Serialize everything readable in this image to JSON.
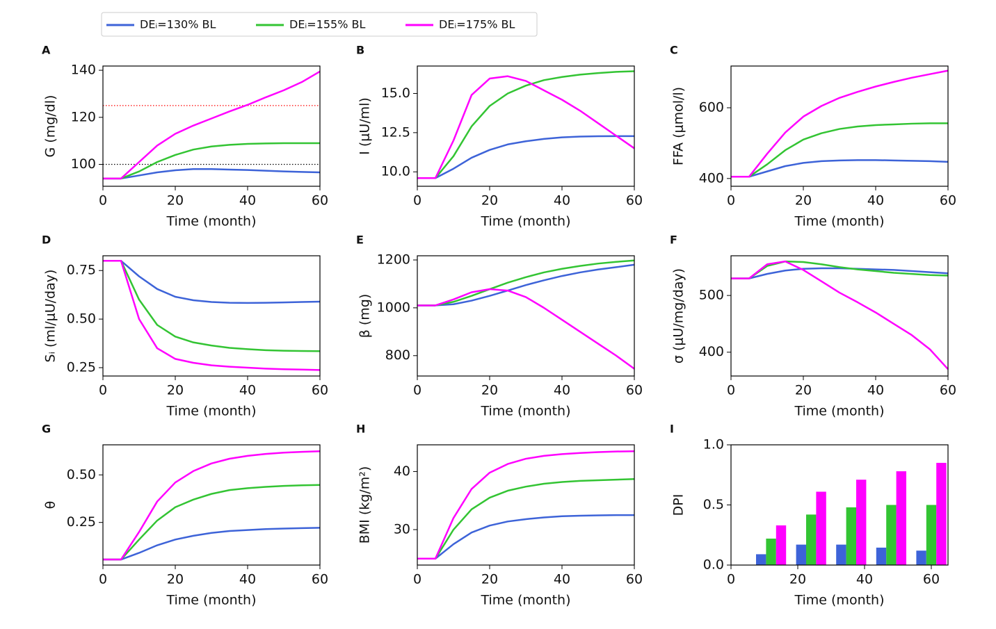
{
  "legend": [
    {
      "name": "DEᵢ=130% BL",
      "color": "#3d63d8"
    },
    {
      "name": "DEᵢ=155% BL",
      "color": "#33c433"
    },
    {
      "name": "DEᵢ=175% BL",
      "color": "#ff00ff"
    }
  ],
  "chart_data": [
    {
      "type": "line",
      "label": "A",
      "ylabel": "G (mg/dl)",
      "xlabel": "Time (month)",
      "x": [
        0,
        5,
        10,
        15,
        20,
        25,
        30,
        35,
        40,
        45,
        50,
        55,
        60
      ],
      "xlim": [
        0,
        60
      ],
      "xticks": [
        0,
        20,
        40,
        60
      ],
      "ylim": [
        90.7,
        141.8
      ],
      "yticks": [
        100,
        120,
        140
      ],
      "hlines": [
        {
          "value": 125,
          "color": "red"
        },
        {
          "value": 100,
          "color": "black"
        }
      ],
      "series": [
        {
          "values": [
            94,
            94,
            95.3,
            96.6,
            97.5,
            98,
            98,
            97.8,
            97.6,
            97.3,
            97,
            96.8,
            96.6
          ]
        },
        {
          "values": [
            94,
            94,
            97,
            101,
            104,
            106.3,
            107.6,
            108.3,
            108.7,
            108.9,
            109,
            109,
            109
          ]
        },
        {
          "values": [
            94,
            94,
            101,
            108,
            113,
            116.5,
            119.5,
            122.5,
            125.3,
            128.5,
            131.5,
            135,
            139.5
          ]
        }
      ]
    },
    {
      "type": "line",
      "label": "B",
      "ylabel": "I (μU/ml)",
      "xlabel": "Time (month)",
      "x": [
        0,
        5,
        10,
        15,
        20,
        25,
        30,
        35,
        40,
        45,
        50,
        55,
        60
      ],
      "xlim": [
        0,
        60
      ],
      "xticks": [
        0,
        20,
        40,
        60
      ],
      "ylim": [
        9.08,
        16.75
      ],
      "yticks": [
        {
          "value": 10,
          "label": "10.0"
        },
        12.5,
        {
          "value": 15,
          "label": "15.0"
        }
      ],
      "series": [
        {
          "values": [
            9.6,
            9.6,
            10.2,
            10.9,
            11.4,
            11.75,
            11.95,
            12.1,
            12.2,
            12.25,
            12.27,
            12.28,
            12.28
          ]
        },
        {
          "values": [
            9.6,
            9.6,
            11.0,
            12.9,
            14.2,
            15.0,
            15.5,
            15.85,
            16.05,
            16.2,
            16.3,
            16.38,
            16.42
          ]
        },
        {
          "values": [
            9.6,
            9.6,
            12.0,
            14.9,
            15.95,
            16.1,
            15.8,
            15.2,
            14.6,
            13.9,
            13.1,
            12.3,
            11.5
          ]
        }
      ]
    },
    {
      "type": "line",
      "label": "C",
      "ylabel": "FFA (μmol/l)",
      "xlabel": "Time (month)",
      "x": [
        0,
        5,
        10,
        15,
        20,
        25,
        30,
        35,
        40,
        45,
        50,
        55,
        60
      ],
      "xlim": [
        0,
        60
      ],
      "xticks": [
        0,
        20,
        40,
        60
      ],
      "ylim": [
        378,
        718
      ],
      "yticks": [
        400,
        600
      ],
      "series": [
        {
          "values": [
            405,
            405,
            420,
            435,
            444,
            449,
            451,
            452,
            452,
            451,
            450,
            449,
            447
          ]
        },
        {
          "values": [
            405,
            405,
            440,
            480,
            510,
            528,
            540,
            547,
            551,
            553,
            555,
            556,
            556
          ]
        },
        {
          "values": [
            405,
            405,
            470,
            530,
            575,
            605,
            628,
            645,
            660,
            673,
            685,
            695,
            705
          ]
        }
      ]
    },
    {
      "type": "line",
      "label": "D",
      "ylabel": "Sᵢ (ml/μU/day)",
      "xlabel": "Time (month)",
      "x": [
        0,
        5,
        10,
        15,
        20,
        25,
        30,
        35,
        40,
        45,
        50,
        55,
        60
      ],
      "xlim": [
        0,
        60
      ],
      "xticks": [
        0,
        20,
        40,
        60
      ],
      "ylim": [
        0.207,
        0.826
      ],
      "yticks": [
        0.25,
        {
          "value": 0.5,
          "label": "0.50"
        },
        0.75
      ],
      "series": [
        {
          "values": [
            0.8,
            0.8,
            0.72,
            0.655,
            0.615,
            0.597,
            0.588,
            0.584,
            0.583,
            0.584,
            0.586,
            0.588,
            0.59
          ]
        },
        {
          "values": [
            0.8,
            0.8,
            0.6,
            0.47,
            0.41,
            0.38,
            0.364,
            0.352,
            0.345,
            0.34,
            0.337,
            0.336,
            0.335
          ]
        },
        {
          "values": [
            0.8,
            0.8,
            0.5,
            0.35,
            0.295,
            0.275,
            0.262,
            0.255,
            0.25,
            0.245,
            0.242,
            0.24,
            0.238
          ]
        }
      ]
    },
    {
      "type": "line",
      "label": "E",
      "ylabel": "β (mg)",
      "xlabel": "Time (month)",
      "x": [
        0,
        5,
        10,
        15,
        20,
        25,
        30,
        35,
        40,
        45,
        50,
        55,
        60
      ],
      "xlim": [
        0,
        60
      ],
      "xticks": [
        0,
        20,
        40,
        60
      ],
      "ylim": [
        715,
        1217.5
      ],
      "yticks": [
        800,
        1000,
        1200
      ],
      "series": [
        {
          "values": [
            1010,
            1010,
            1015,
            1030,
            1050,
            1072,
            1095,
            1115,
            1133,
            1148,
            1160,
            1170,
            1180
          ]
        },
        {
          "values": [
            1010,
            1010,
            1025,
            1050,
            1078,
            1105,
            1128,
            1148,
            1163,
            1175,
            1185,
            1192,
            1198
          ]
        },
        {
          "values": [
            1010,
            1010,
            1035,
            1065,
            1078,
            1072,
            1045,
            1000,
            950,
            900,
            850,
            800,
            745
          ]
        }
      ]
    },
    {
      "type": "line",
      "label": "F",
      "ylabel": "σ (μU/mg/day)",
      "xlabel": "Time (month)",
      "x": [
        0,
        5,
        10,
        15,
        20,
        25,
        30,
        35,
        40,
        45,
        50,
        55,
        60
      ],
      "xlim": [
        0,
        60
      ],
      "xticks": [
        0,
        20,
        40,
        60
      ],
      "ylim": [
        358,
        570
      ],
      "yticks": [
        400,
        500
      ],
      "series": [
        {
          "values": [
            530,
            530,
            538,
            544,
            547,
            548,
            548,
            547,
            546,
            545,
            543,
            541,
            539
          ]
        },
        {
          "values": [
            530,
            530,
            552,
            560,
            559,
            555,
            550,
            546,
            543,
            540,
            538,
            536,
            535
          ]
        },
        {
          "values": [
            530,
            530,
            555,
            560,
            545,
            525,
            505,
            488,
            470,
            450,
            430,
            405,
            370
          ]
        }
      ]
    },
    {
      "type": "line",
      "label": "G",
      "ylabel": "θ",
      "xlabel": "Time (month)",
      "x": [
        0,
        5,
        10,
        15,
        20,
        25,
        30,
        35,
        40,
        45,
        50,
        55,
        60
      ],
      "xlim": [
        0,
        60
      ],
      "xticks": [
        0,
        20,
        40,
        60
      ],
      "ylim": [
        0.026,
        0.658
      ],
      "yticks": [
        0.25,
        {
          "value": 0.5,
          "label": "0.50"
        }
      ],
      "series": [
        {
          "values": [
            0.055,
            0.055,
            0.09,
            0.13,
            0.16,
            0.18,
            0.195,
            0.205,
            0.21,
            0.215,
            0.218,
            0.22,
            0.222
          ]
        },
        {
          "values": [
            0.055,
            0.055,
            0.16,
            0.26,
            0.33,
            0.37,
            0.4,
            0.42,
            0.43,
            0.437,
            0.442,
            0.445,
            0.447
          ]
        },
        {
          "values": [
            0.055,
            0.055,
            0.2,
            0.36,
            0.46,
            0.52,
            0.56,
            0.585,
            0.6,
            0.61,
            0.617,
            0.621,
            0.624
          ]
        }
      ]
    },
    {
      "type": "line",
      "label": "H",
      "ylabel": "BMI (kg/m²)",
      "xlabel": "Time (month)",
      "x": [
        0,
        5,
        10,
        15,
        20,
        25,
        30,
        35,
        40,
        45,
        50,
        55,
        60
      ],
      "xlim": [
        0,
        60
      ],
      "xticks": [
        0,
        20,
        40,
        60
      ],
      "ylim": [
        23.9,
        44.6
      ],
      "yticks": [
        30,
        40
      ],
      "series": [
        {
          "values": [
            25,
            25,
            27.5,
            29.5,
            30.7,
            31.4,
            31.8,
            32.1,
            32.3,
            32.4,
            32.45,
            32.5,
            32.5
          ]
        },
        {
          "values": [
            25,
            25,
            30,
            33.5,
            35.5,
            36.7,
            37.4,
            37.9,
            38.2,
            38.4,
            38.5,
            38.6,
            38.7
          ]
        },
        {
          "values": [
            25,
            25,
            32,
            37,
            39.8,
            41.3,
            42.2,
            42.7,
            43,
            43.2,
            43.35,
            43.45,
            43.5
          ]
        }
      ]
    },
    {
      "type": "bar",
      "label": "I",
      "ylabel": "DPI",
      "xlabel": "Time (month)",
      "x": [
        12,
        24,
        36,
        48,
        60
      ],
      "xlim": [
        0,
        65
      ],
      "xticks": [
        0,
        20,
        40,
        60
      ],
      "ylim": [
        0,
        1
      ],
      "yticks": [
        {
          "value": 0,
          "label": "0.0"
        },
        {
          "value": 0.5,
          "label": "0.5"
        },
        {
          "value": 1,
          "label": "1.0"
        }
      ],
      "series": [
        {
          "values": [
            0.09,
            0.17,
            0.17,
            0.145,
            0.12
          ]
        },
        {
          "values": [
            0.22,
            0.42,
            0.48,
            0.5,
            0.5
          ]
        },
        {
          "values": [
            0.33,
            0.61,
            0.71,
            0.78,
            0.85
          ]
        }
      ]
    }
  ]
}
